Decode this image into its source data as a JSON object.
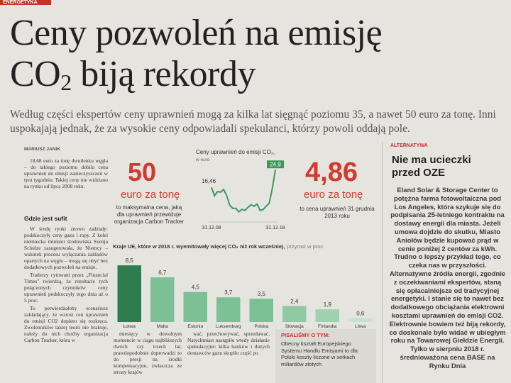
{
  "section_label": "ENERGETYKA",
  "headline": {
    "line1": "Ceny pozwoleń na emisję",
    "line2_a": "CO",
    "line2_sub": "2",
    "line2_b": " biją rekordy"
  },
  "lead": "Według części ekspertów ceny uprawnień mogą za kilka lat sięgnąć poziomu 35, a nawet 50 euro za tonę. Inni uspokajają jednak, że za wysokie ceny odpowiadali spekulanci, którzy powoli oddają pole.",
  "author": "MARIUSZ JANIK",
  "left_column": {
    "intro": "18,68 euro za tonę dwutlenku węgla – do takiego poziomu dobiła cena uprawnień do emisji zanieczyszczeń w tym tygodniu. Takiej ceny nie widziano na rynku od lipca 2008 roku.",
    "subhead": "Gdzie jest sufit",
    "paragraphs": [
      "W środę rynki znowu zadziały: podskoczyły ceny gazu i ropy. Z kolei niemiecka minister środowiska Svenja Schulze zasugerowała, że Niemcy – wskutek procesu wyłączania zakładów opartych na węglu – mogą się obyć bez dodatkowych pozwoleń na emisje.",
      "Traderzy cytowani przez „Financial Times” twierdzą, że rezultacie tych połączonych czynników ceny uprawnień podskoczyły tego dnia aż o 5 proc.",
      "To potwierdzałoby scenariusz zakładający, że wzrost cen uprawnień do emisji CO2 dopiero się rozkręca. Zwolenników takiej teorii nie brakuje, należy do nich choćby organizacja Carbon Tracker, która w"
    ]
  },
  "stat_1": {
    "value": "50",
    "unit": "euro za tonę",
    "note": "to maksymalna cena, jaką dla uprawnień przewiduje organizacja Carbon Tracker"
  },
  "stat_2": {
    "value": "4,86",
    "unit": "euro za tonę",
    "note": "to cena uprawnień 31 grudnia 2013 roku"
  },
  "line_chart": {
    "chart_data": {
      "type": "line",
      "title": "Ceny uprawnień do emisji CO₂,",
      "subtitle": "w euro",
      "x_labels": [
        "31.12.08",
        "31.12.18"
      ],
      "values": [
        16.46,
        12.5,
        14.5,
        14.2,
        15.5,
        12.5,
        8,
        6.5,
        6.5,
        4.86,
        6,
        5.5,
        7,
        8.2,
        7.5,
        8.5,
        5.5,
        6,
        7.5,
        9,
        16,
        24.9
      ],
      "value_labels": [
        "16,46",
        null,
        null,
        null,
        null,
        null,
        null,
        null,
        null,
        null,
        null,
        null,
        null,
        null,
        null,
        null,
        null,
        null,
        null,
        null,
        null,
        "24,9"
      ],
      "color": "#3a9a5a",
      "ylim": [
        0,
        27
      ]
    }
  },
  "bar_chart": {
    "chart_data": {
      "type": "bar",
      "title": "Kraje UE, które w 2018 r. wyemitowały więcej CO₂ niż rok wcześniej,",
      "subtitle": "przyrost w proc.",
      "categories": [
        "Łotwa",
        "Malta",
        "Estonia",
        "Luksemburg",
        "Polska",
        "Słowacja",
        "Finlandia",
        "Litwa"
      ],
      "values": [
        8.5,
        6.7,
        4.5,
        3.7,
        3.5,
        2.4,
        1.9,
        0.6
      ],
      "value_labels": [
        "8,5",
        "6,7",
        "4,5",
        "3,7",
        "3,5",
        "2,4",
        "1,9",
        "0,6"
      ],
      "colors": [
        "#2f7d4e",
        "#7cc196",
        "#7cc196",
        "#7cc196",
        "#7cc196",
        "#8fcaa5",
        "#9fd1b1",
        "#c4e3cf"
      ],
      "ylim": [
        0,
        10
      ]
    }
  },
  "bottom_columns": [
    "miesięcy w dowolnym momencie w ciągu najbliższych dwóch czy trzech lat, prawdopodobnie doprowadzi to do presji na środki kompensacyjne, zwłaszcza ze strony krajów",
    "wać, przechowywać, sprzedawać. Natychmiast nastąpiło wtedy działanie spekulacyjne: kilka banków i dużych dostawców gazu skupiło część po"
  ],
  "related": {
    "label": "PISALIŚMY O TYM:",
    "text": "Obecny kształt Europejskiego Systemu Handlu Emisjami to dla Polski koszty liczone w setkach miliardów złotych"
  },
  "sidebar": {
    "label": "ALTERNATYWA",
    "headline": "Nie ma ucieczki przed OZE",
    "body": "Eland Solar & Storage Center to potężna farma fotowoltaiczna pod Los Angeles, która szykuje się do podpisania 25-letniego kontraktu na dostawy energii dla miasta. Jeżeli umowa dojdzie do skutku, Miasto Aniołów będzie kupować prąd w cenie poniżej 2 centów za kWh. Trudno o lepszy przykład tego, co czeka nas w przyszłości. Alternatywne źródła energii, zgodnie z oczekiwaniami ekspertów, staną się opłacalniejsze od tradycyjnej energetyki. I stanie się to nawet bez dodatkowego obciążania elektrowni kosztami uprawnień do emisji CO2. Elektrownie bowiem też biją rekordy, co doskonale było widać w ubiegłym roku na Towarowej Giełdzie Energii. Tylko w sierpniu 2018 r. średnioważona cena BASE na Rynku Dnia"
  }
}
